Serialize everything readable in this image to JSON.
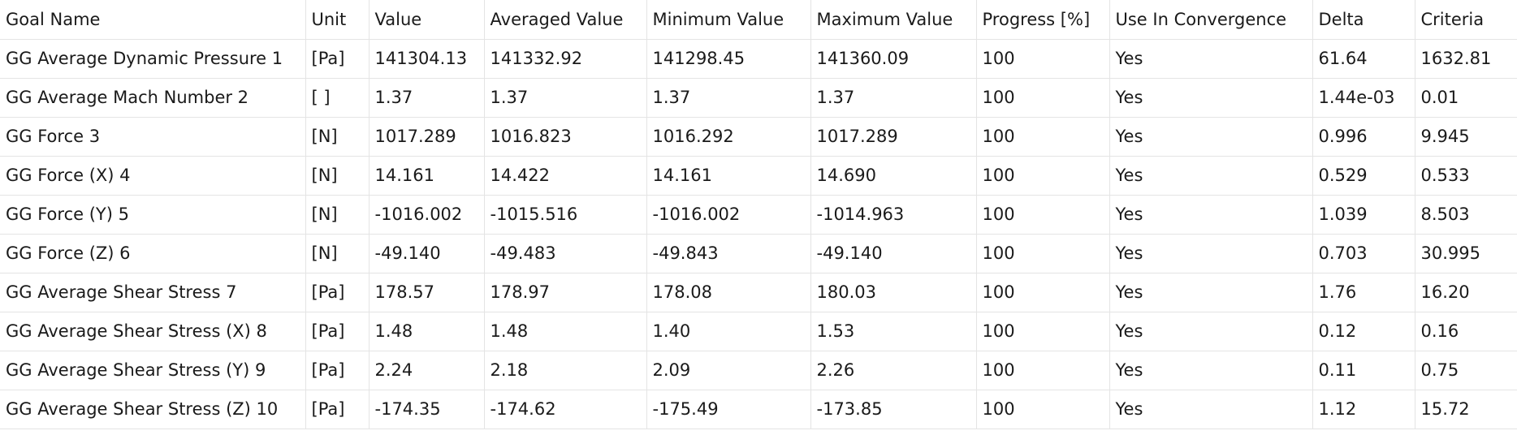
{
  "columns": [
    "Goal Name",
    "Unit",
    "Value",
    "Averaged Value",
    "Minimum Value",
    "Maximum Value",
    "Progress [%]",
    "Use In Convergence",
    "Delta",
    "Criteria"
  ],
  "rows": [
    [
      "GG Average Dynamic Pressure 1",
      "[Pa]",
      "141304.13",
      "141332.92",
      "141298.45",
      "141360.09",
      "100",
      "Yes",
      "61.64",
      "1632.81"
    ],
    [
      "GG Average Mach Number 2",
      "[ ]",
      "1.37",
      "1.37",
      "1.37",
      "1.37",
      "100",
      "Yes",
      "1.44e-03",
      "0.01"
    ],
    [
      "GG Force 3",
      "[N]",
      "1017.289",
      "1016.823",
      "1016.292",
      "1017.289",
      "100",
      "Yes",
      "0.996",
      "9.945"
    ],
    [
      "GG Force (X) 4",
      "[N]",
      "14.161",
      "14.422",
      "14.161",
      "14.690",
      "100",
      "Yes",
      "0.529",
      "0.533"
    ],
    [
      "GG Force (Y) 5",
      "[N]",
      "-1016.002",
      "-1015.516",
      "-1016.002",
      "-1014.963",
      "100",
      "Yes",
      "1.039",
      "8.503"
    ],
    [
      "GG Force (Z) 6",
      "[N]",
      "-49.140",
      "-49.483",
      "-49.843",
      "-49.140",
      "100",
      "Yes",
      "0.703",
      "30.995"
    ],
    [
      "GG Average Shear Stress 7",
      "[Pa]",
      "178.57",
      "178.97",
      "178.08",
      "180.03",
      "100",
      "Yes",
      "1.76",
      "16.20"
    ],
    [
      "GG Average Shear Stress (X) 8",
      "[Pa]",
      "1.48",
      "1.48",
      "1.40",
      "1.53",
      "100",
      "Yes",
      "0.12",
      "0.16"
    ],
    [
      "GG Average Shear Stress (Y) 9",
      "[Pa]",
      "2.24",
      "2.18",
      "2.09",
      "2.26",
      "100",
      "Yes",
      "0.11",
      "0.75"
    ],
    [
      "GG Average Shear Stress (Z) 10",
      "[Pa]",
      "-174.35",
      "-174.62",
      "-175.49",
      "-173.85",
      "100",
      "Yes",
      "1.12",
      "15.72"
    ]
  ]
}
